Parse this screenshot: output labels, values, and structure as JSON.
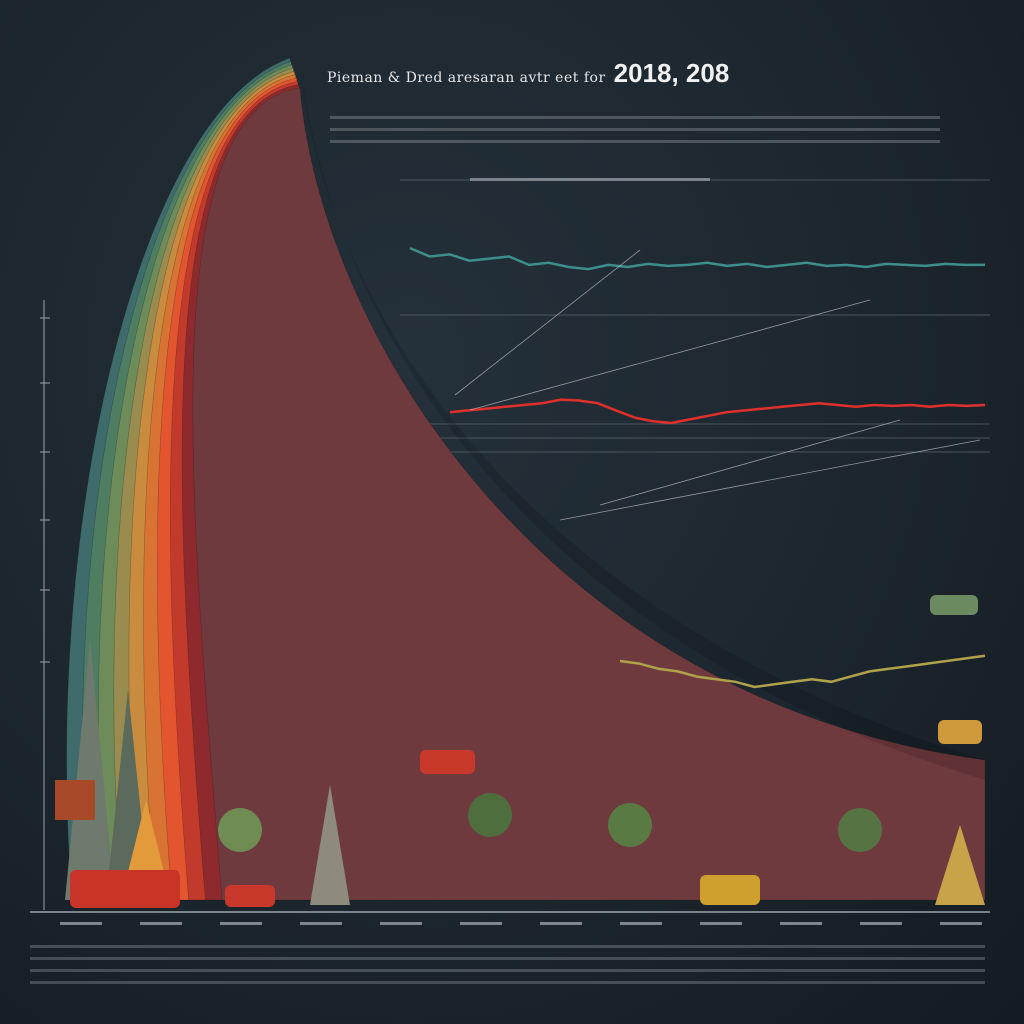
{
  "chart_data": {
    "type": "area",
    "title": "Pieman & Dred aresaran avtr eet for",
    "title_year": "2018, 208",
    "ylabel": "",
    "xlabel": "",
    "grid": false,
    "bands": [
      {
        "color": "#3e6b6b"
      },
      {
        "color": "#4f7d62"
      },
      {
        "color": "#6d8c5a"
      },
      {
        "color": "#9a8b4e"
      },
      {
        "color": "#c98b3e"
      },
      {
        "color": "#d97334"
      },
      {
        "color": "#e2552e"
      },
      {
        "color": "#c23a2c"
      },
      {
        "color": "#8e2a2d"
      },
      {
        "color": "#6e3a3e"
      }
    ],
    "lines": [
      {
        "color": "#3e8e8c",
        "values": [
          0.78,
          0.7,
          0.72,
          0.66,
          0.68,
          0.7,
          0.62,
          0.64,
          0.6,
          0.58,
          0.62,
          0.6,
          0.63,
          0.61,
          0.62,
          0.64,
          0.61,
          0.63,
          0.6,
          0.62,
          0.64,
          0.61,
          0.62,
          0.6,
          0.63,
          0.62,
          0.61,
          0.63,
          0.62,
          0.62
        ]
      },
      {
        "color": "#e0302b",
        "values": [
          0.42,
          0.44,
          0.46,
          0.48,
          0.5,
          0.52,
          0.56,
          0.55,
          0.52,
          0.44,
          0.36,
          0.32,
          0.3,
          0.34,
          0.38,
          0.42,
          0.44,
          0.46,
          0.48,
          0.5,
          0.52,
          0.5,
          0.48,
          0.5,
          0.49,
          0.5,
          0.48,
          0.5,
          0.49,
          0.5
        ]
      },
      {
        "color": "#b0a24a",
        "values": [
          0.3,
          0.28,
          0.24,
          0.22,
          0.18,
          0.16,
          0.14,
          0.1,
          0.12,
          0.14,
          0.16,
          0.14,
          0.18,
          0.22,
          0.24,
          0.26,
          0.28,
          0.3,
          0.32,
          0.34
        ]
      }
    ],
    "icon_names": [
      "mountain-icon",
      "tree-icon",
      "car-icon",
      "truck-icon",
      "temple-icon"
    ]
  }
}
